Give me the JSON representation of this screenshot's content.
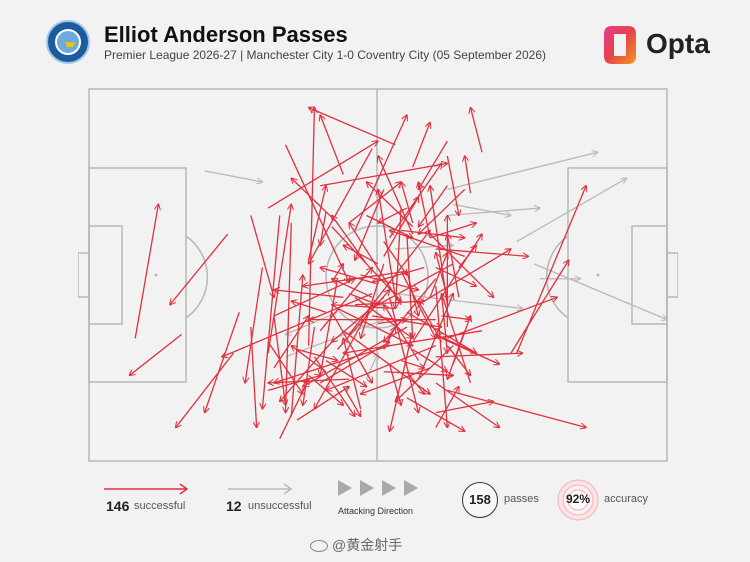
{
  "header": {
    "title": "Elliot Anderson Passes",
    "subtitle": "Premier League 2026-27 | Manchester City 1-0 Coventry City (05 September 2026)",
    "crest_icon": "manchester-city-crest",
    "brand": "Opta"
  },
  "colors": {
    "successful": "#e0313f",
    "unsuccessful": "#b9b9b9",
    "pitch_lines": "#b7b7b7",
    "background": "#f2f2f2"
  },
  "legend": {
    "successful_count": "146",
    "successful_label": "successful",
    "unsuccessful_count": "12",
    "unsuccessful_label": "unsuccessful",
    "attacking_direction_label": "Attacking Direction",
    "passes_count": "158",
    "passes_label": "passes",
    "accuracy_value": "92%",
    "accuracy_label": "accuracy"
  },
  "watermark": "@黄金射手",
  "passes": {
    "successful": [
      [
        38,
        69,
        39,
        5
      ],
      [
        49,
        55,
        23,
        72
      ],
      [
        40,
        79,
        52,
        68
      ],
      [
        42,
        68,
        33,
        84
      ],
      [
        35,
        88,
        37,
        50
      ],
      [
        31,
        32,
        50,
        14
      ],
      [
        36,
        89,
        45,
        80
      ],
      [
        50,
        47,
        44,
        42
      ],
      [
        46,
        58,
        58,
        57
      ],
      [
        63,
        47,
        50,
        58
      ],
      [
        55,
        64,
        37,
        80
      ],
      [
        56,
        21,
        59,
        9
      ],
      [
        59,
        40,
        67,
        36
      ],
      [
        54,
        49,
        60,
        67
      ],
      [
        53,
        56,
        50,
        27
      ],
      [
        52,
        69,
        32,
        79
      ],
      [
        33,
        94,
        38,
        78
      ],
      [
        26,
        60,
        20,
        87
      ],
      [
        60,
        53,
        62,
        91
      ],
      [
        68,
        65,
        44,
        71
      ],
      [
        62,
        67,
        81,
        56
      ],
      [
        52,
        40,
        61,
        20
      ],
      [
        53,
        15,
        38,
        5
      ],
      [
        56,
        37,
        48,
        25
      ],
      [
        47,
        86,
        44,
        67
      ],
      [
        60,
        62,
        38,
        62
      ],
      [
        57,
        78,
        63,
        55
      ],
      [
        66,
        28,
        65,
        18
      ],
      [
        44,
        56,
        32,
        54
      ],
      [
        59,
        75,
        47,
        82
      ],
      [
        62,
        56,
        60,
        44
      ],
      [
        60,
        87,
        70,
        84
      ],
      [
        32,
        61,
        46,
        51
      ],
      [
        60,
        91,
        64,
        80
      ],
      [
        59,
        40,
        57,
        25
      ],
      [
        59,
        39,
        70,
        56
      ],
      [
        49,
        58,
        39,
        86
      ],
      [
        59,
        56,
        62,
        44
      ],
      [
        31,
        71,
        35,
        31
      ],
      [
        41,
        76,
        35,
        69
      ],
      [
        62,
        64,
        62,
        34
      ],
      [
        44,
        65,
        59,
        82
      ],
      [
        67,
        71,
        60,
        66
      ],
      [
        51,
        56,
        42,
        68
      ],
      [
        74,
        71,
        86,
        26
      ],
      [
        60,
        51,
        51,
        68
      ],
      [
        47,
        50,
        57,
        54
      ],
      [
        40,
        26,
        62,
        20
      ],
      [
        42,
        52,
        44,
        47
      ],
      [
        42,
        60,
        49,
        79
      ],
      [
        35,
        36,
        34,
        87
      ],
      [
        41,
        73,
        48,
        80
      ],
      [
        48,
        47,
        42,
        34
      ],
      [
        43,
        51,
        40,
        77
      ],
      [
        58,
        57,
        73,
        43
      ],
      [
        30,
        48,
        27,
        79
      ],
      [
        54,
        58,
        45,
        36
      ],
      [
        62,
        14,
        57,
        27
      ],
      [
        55,
        39,
        56,
        67
      ],
      [
        25,
        71,
        15,
        91
      ],
      [
        63,
        74,
        66,
        61
      ],
      [
        51,
        47,
        47,
        67
      ],
      [
        54,
        73,
        58,
        75
      ],
      [
        60,
        43,
        76,
        45
      ],
      [
        38,
        46,
        41,
        26
      ],
      [
        51,
        41,
        55,
        50
      ],
      [
        50,
        63,
        55,
        62
      ],
      [
        64,
        48,
        67,
        42
      ],
      [
        64,
        56,
        62,
        39
      ],
      [
        56,
        36,
        54,
        25
      ],
      [
        24,
        39,
        14,
        58
      ],
      [
        34,
        15,
        45,
        52
      ],
      [
        57,
        73,
        51,
        58
      ],
      [
        40,
        65,
        49,
        48
      ],
      [
        31,
        81,
        40,
        77
      ],
      [
        62,
        69,
        66,
        77
      ],
      [
        49,
        56,
        42,
        51
      ],
      [
        55,
        49,
        37,
        53
      ],
      [
        51,
        76,
        63,
        77
      ],
      [
        33,
        34,
        30,
        86
      ],
      [
        46,
        38,
        55,
        7
      ],
      [
        44,
        80,
        47,
        88
      ],
      [
        56,
        70,
        62,
        76
      ],
      [
        55,
        83,
        65,
        92
      ],
      [
        65,
        45,
        52,
        38
      ],
      [
        62,
        58,
        59,
        26
      ],
      [
        54,
        32,
        53,
        59
      ],
      [
        55,
        32,
        50,
        36
      ],
      [
        46,
        56,
        56,
        67
      ],
      [
        42,
        37,
        54,
        57
      ],
      [
        56,
        39,
        50,
        18
      ],
      [
        60,
        72,
        75,
        71
      ],
      [
        44,
        23,
        40,
        7
      ],
      [
        43,
        59,
        56,
        69
      ],
      [
        45,
        36,
        54,
        25
      ],
      [
        51,
        70,
        53,
        64
      ],
      [
        61,
        67,
        71,
        74
      ],
      [
        52,
        74,
        54,
        85
      ],
      [
        62,
        18,
        64,
        34
      ],
      [
        39,
        64,
        37,
        85
      ],
      [
        58,
        48,
        49,
        52
      ],
      [
        56,
        68,
        68,
        39
      ],
      [
        49,
        61,
        61,
        64
      ],
      [
        60,
        79,
        71,
        91
      ],
      [
        41,
        60,
        35,
        57
      ],
      [
        38,
        77,
        44,
        85
      ],
      [
        60,
        69,
        41,
        81
      ],
      [
        61,
        55,
        62,
        71
      ],
      [
        56,
        65,
        52,
        92
      ],
      [
        54,
        38,
        65,
        40
      ],
      [
        55,
        49,
        57,
        61
      ],
      [
        45,
        78,
        31,
        79
      ],
      [
        16,
        66,
        7,
        77
      ],
      [
        32,
        61,
        34,
        85
      ],
      [
        65,
        65,
        62,
        78
      ],
      [
        28,
        64,
        29,
        91
      ],
      [
        45,
        66,
        59,
        38
      ],
      [
        48,
        34,
        56,
        40
      ],
      [
        65,
        27,
        57,
        39
      ],
      [
        61,
        68,
        57,
        57
      ],
      [
        51,
        45,
        57,
        29
      ],
      [
        61,
        61,
        66,
        62
      ],
      [
        36,
        70,
        43,
        73
      ],
      [
        68,
        17,
        66,
        5
      ],
      [
        55,
        60,
        67,
        71
      ],
      [
        66,
        79,
        61,
        55
      ],
      [
        60,
        48,
        67,
        53
      ],
      [
        63,
        69,
        53,
        84
      ],
      [
        32,
        75,
        38,
        61
      ],
      [
        49,
        16,
        38,
        47
      ],
      [
        45,
        55,
        50,
        58
      ],
      [
        39,
        72,
        46,
        88
      ],
      [
        49,
        52,
        40,
        48
      ],
      [
        28,
        34,
        32,
        56
      ],
      [
        43,
        70,
        52,
        54
      ],
      [
        43,
        36,
        35,
        24
      ],
      [
        31,
        68,
        37,
        82
      ],
      [
        52,
        56,
        57,
        87
      ],
      [
        51,
        27,
        46,
        46
      ],
      [
        62,
        26,
        57,
        37
      ],
      [
        55,
        76,
        58,
        82
      ],
      [
        8,
        67,
        12,
        31
      ],
      [
        41,
        33,
        40,
        42
      ],
      [
        53,
        59,
        42,
        58
      ],
      [
        62,
        81,
        86,
        91
      ],
      [
        73,
        71,
        83,
        46
      ]
    ],
    "unsuccessful": [
      [
        62,
        27,
        88,
        17
      ],
      [
        62,
        34,
        78,
        32
      ],
      [
        74,
        41,
        93,
        24
      ],
      [
        78,
        51,
        85,
        51
      ],
      [
        77,
        47,
        100,
        62
      ],
      [
        63,
        31,
        73,
        34
      ],
      [
        48,
        78,
        50,
        71
      ],
      [
        20,
        22,
        30,
        25
      ],
      [
        43,
        60,
        34,
        66
      ],
      [
        34,
        72,
        51,
        62
      ],
      [
        53,
        55,
        75,
        59
      ],
      [
        53,
        43,
        63,
        42
      ]
    ]
  }
}
